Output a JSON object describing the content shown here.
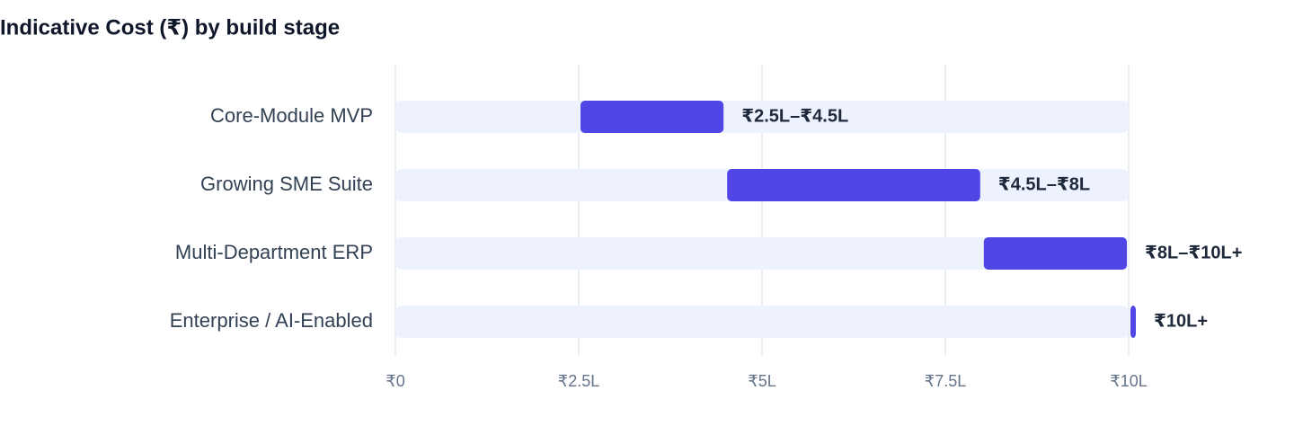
{
  "chart_data": {
    "type": "range-bar",
    "title": "Indicative Cost (₹) by build stage",
    "categories": [
      "Core-Module MVP",
      "Growing SME Suite",
      "Multi-Department ERP",
      "Enterprise / AI-Enabled"
    ],
    "starts": [
      2.5,
      4.5,
      8,
      10
    ],
    "ends": [
      4.5,
      8,
      10,
      10.1
    ],
    "value_labels": [
      "₹2.5L–₹4.5L",
      "₹4.5L–₹8L",
      "₹8L–₹10L+",
      "₹10L+"
    ],
    "color": "#4f46e5",
    "track_color": "#eef2ff",
    "xlim": [
      0,
      10
    ],
    "xticks": [
      {
        "value": 0,
        "label": "₹0"
      },
      {
        "value": 2.5,
        "label": "₹2.5L"
      },
      {
        "value": 5,
        "label": "₹5L"
      },
      {
        "value": 7.5,
        "label": "₹7.5L"
      },
      {
        "value": 10,
        "label": "₹10L"
      }
    ],
    "grid": true
  }
}
